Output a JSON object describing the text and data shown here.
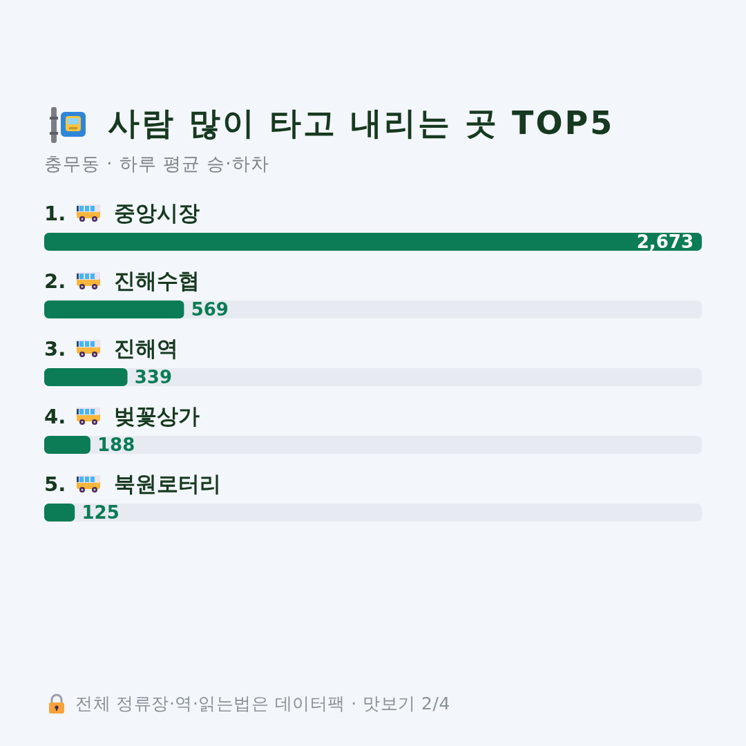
{
  "chart_data": {
    "type": "bar",
    "orientation": "horizontal",
    "title": "사람 많이 타고 내리는 곳 TOP5",
    "subtitle": "충무동 · 하루 평균 승·하차",
    "categories": [
      "1. 중앙시장",
      "2. 진해수협",
      "3. 진해역",
      "4. 벚꽃상가",
      "5. 북원로터리"
    ],
    "values": [
      2673,
      569,
      339,
      188,
      125
    ],
    "value_labels": [
      "2,673",
      "569",
      "339",
      "188",
      "125"
    ],
    "color": "#0b7c55",
    "annotations": [
      "전체 정류장·역·읽는법은 데이터팩 · 맛보기 2/4"
    ]
  }
}
